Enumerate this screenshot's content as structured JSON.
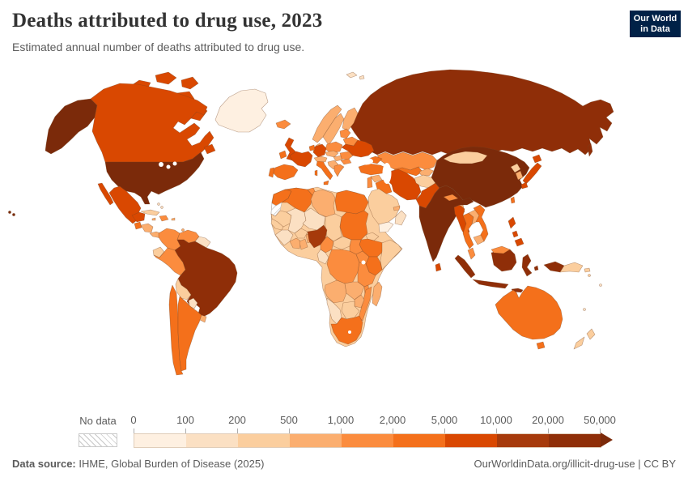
{
  "header": {
    "title": "Deaths attributed to drug use, 2023",
    "subtitle": "Estimated annual number of deaths attributed to drug use.",
    "logo": {
      "line1": "Our World",
      "line2": "in Data",
      "bg_color": "#002147",
      "accent_color": "#d93a21"
    }
  },
  "chart_data": {
    "type": "choropleth_map",
    "title": "Deaths attributed to drug use, 2023",
    "subtitle": "Estimated annual number of deaths attributed to drug use.",
    "year": "2023",
    "legend": {
      "no_data_label": "No data",
      "tick_labels": [
        "0",
        "100",
        "200",
        "500",
        "1,000",
        "2,000",
        "5,000",
        "10,000",
        "20,000",
        "50,000"
      ],
      "bin_ranges": [
        "0-100",
        "100-200",
        "200-500",
        "500-1,000",
        "1,000-2,000",
        "2,000-5,000",
        "5,000-10,000",
        "10,000-20,000",
        "20,000-50,000",
        ">50,000"
      ],
      "bin_colors": [
        "#fef0e1",
        "#fbe0c3",
        "#fbce9e",
        "#fbae6f",
        "#fb8c3e",
        "#f4701b",
        "#d94801",
        "#a63a0b",
        "#8f2e08",
        "#7b2a0a"
      ],
      "no_data_pattern": "diagonal-hatch",
      "open_ended_upper": true
    },
    "countries": [
      {
        "n": "United States",
        "b": 9
      },
      {
        "n": "Canada",
        "b": 6
      },
      {
        "n": "Greenland",
        "b": 0
      },
      {
        "n": "Mexico",
        "b": 6
      },
      {
        "n": "Guatemala",
        "b": 5
      },
      {
        "n": "Honduras",
        "b": 3
      },
      {
        "n": "Panama",
        "b": 3
      },
      {
        "n": "Cuba",
        "b": 2
      },
      {
        "n": "Dominican Republic",
        "b": 4
      },
      {
        "n": "Jamaica",
        "b": 3
      },
      {
        "n": "Puerto Rico",
        "b": 3
      },
      {
        "n": "Bahamas",
        "b": 1
      },
      {
        "n": "Trinidad and Tobago",
        "b": 3
      },
      {
        "n": "Colombia",
        "b": 4
      },
      {
        "n": "Venezuela",
        "b": 4
      },
      {
        "n": "Guyana",
        "b": 1
      },
      {
        "n": "Ecuador",
        "b": 2
      },
      {
        "n": "Peru",
        "b": 4
      },
      {
        "n": "Brazil",
        "b": 8
      },
      {
        "n": "Bolivia",
        "b": 2
      },
      {
        "n": "Paraguay",
        "b": 1
      },
      {
        "n": "Chile",
        "b": 5
      },
      {
        "n": "Argentina",
        "b": 5
      },
      {
        "n": "Uruguay",
        "b": 3
      },
      {
        "n": "Iceland",
        "b": 4
      },
      {
        "n": "United Kingdom",
        "b": 6
      },
      {
        "n": "Ireland",
        "b": 5
      },
      {
        "n": "Norway",
        "b": 3
      },
      {
        "n": "Sweden",
        "b": 3
      },
      {
        "n": "Finland",
        "b": 3
      },
      {
        "n": "Denmark",
        "b": 3
      },
      {
        "n": "Lithuania",
        "b": 4
      },
      {
        "n": "Belarus",
        "b": 4
      },
      {
        "n": "Poland",
        "b": 4
      },
      {
        "n": "Germany",
        "b": 6
      },
      {
        "n": "Netherlands",
        "b": 5
      },
      {
        "n": "France",
        "b": 6
      },
      {
        "n": "Spain",
        "b": 5
      },
      {
        "n": "Portugal",
        "b": 5
      },
      {
        "n": "Italy",
        "b": 5
      },
      {
        "n": "Austria",
        "b": 3
      },
      {
        "n": "Czechia",
        "b": 3
      },
      {
        "n": "Hungary",
        "b": 3
      },
      {
        "n": "Serbia",
        "b": 3
      },
      {
        "n": "Romania",
        "b": 4
      },
      {
        "n": "Bulgaria",
        "b": 4
      },
      {
        "n": "Greece",
        "b": 4
      },
      {
        "n": "Ukraine",
        "b": 6
      },
      {
        "n": "Russia",
        "b": 8
      },
      {
        "n": "Svalbard",
        "b": 1
      },
      {
        "n": "Kazakhstan",
        "b": 4
      },
      {
        "n": "Uzbekistan",
        "b": 5
      },
      {
        "n": "Turkmenistan",
        "b": 4
      },
      {
        "n": "Kyrgyzstan",
        "b": 3
      },
      {
        "n": "Azerbaijan",
        "b": 5
      },
      {
        "n": "Turkey",
        "b": 5
      },
      {
        "n": "Syria",
        "b": 3
      },
      {
        "n": "Jordan",
        "b": 4
      },
      {
        "n": "Iraq",
        "b": 5
      },
      {
        "n": "Iran",
        "b": 6
      },
      {
        "n": "Saudi Arabia",
        "b": 2
      },
      {
        "n": "Yemen",
        "b": 0
      },
      {
        "n": "Oman",
        "b": 1
      },
      {
        "n": "United Arab Emirates",
        "b": 3
      },
      {
        "n": "Afghanistan",
        "b": 2
      },
      {
        "n": "Pakistan",
        "b": 6
      },
      {
        "n": "India",
        "b": 9
      },
      {
        "n": "Nepal",
        "b": 4
      },
      {
        "n": "Bangladesh",
        "b": 3
      },
      {
        "n": "Sri Lanka",
        "b": 6
      },
      {
        "n": "China",
        "b": 9
      },
      {
        "n": "Mongolia",
        "b": 2
      },
      {
        "n": "North Korea",
        "b": 2
      },
      {
        "n": "South Korea",
        "b": 3
      },
      {
        "n": "Japan",
        "b": 6
      },
      {
        "n": "Taiwan",
        "b": 5
      },
      {
        "n": "Myanmar",
        "b": 6
      },
      {
        "n": "Thailand",
        "b": 5
      },
      {
        "n": "Laos",
        "b": 3
      },
      {
        "n": "Vietnam",
        "b": 5
      },
      {
        "n": "Cambodia",
        "b": 3
      },
      {
        "n": "Malaysia",
        "b": 4
      },
      {
        "n": "Indonesia",
        "b": 8
      },
      {
        "n": "Timor",
        "b": 1
      },
      {
        "n": "Philippines",
        "b": 6
      },
      {
        "n": "Papua New Guinea",
        "b": 2
      },
      {
        "n": "Solomon Islands",
        "b": 2
      },
      {
        "n": "Fiji",
        "b": 1
      },
      {
        "n": "New Caledonia",
        "b": 1
      },
      {
        "n": "Australia",
        "b": 5
      },
      {
        "n": "New Zealand",
        "b": 2
      },
      {
        "n": "Morocco",
        "b": 5
      },
      {
        "n": "Western Sahara",
        "b": -1
      },
      {
        "n": "Algeria",
        "b": 5
      },
      {
        "n": "Tunisia",
        "b": 4
      },
      {
        "n": "Libya",
        "b": 3
      },
      {
        "n": "Egypt",
        "b": 5
      },
      {
        "n": "Mauritania",
        "b": 2
      },
      {
        "n": "Mali",
        "b": 1
      },
      {
        "n": "Niger",
        "b": 1
      },
      {
        "n": "Chad",
        "b": 2
      },
      {
        "n": "Sudan",
        "b": 5
      },
      {
        "n": "Eritrea",
        "b": 2
      },
      {
        "n": "Ethiopia",
        "b": 5
      },
      {
        "n": "Somalia",
        "b": 2
      },
      {
        "n": "Senegal",
        "b": 2
      },
      {
        "n": "Guinea",
        "b": 1
      },
      {
        "n": "Ivory Coast",
        "b": 3
      },
      {
        "n": "Ghana",
        "b": 3
      },
      {
        "n": "Benin",
        "b": 3
      },
      {
        "n": "Burkina Faso",
        "b": 2
      },
      {
        "n": "Nigeria",
        "b": 7
      },
      {
        "n": "Cameroon",
        "b": 4
      },
      {
        "n": "Central African Republic",
        "b": 2
      },
      {
        "n": "South Sudan",
        "b": 4
      },
      {
        "n": "Gabon",
        "b": 1
      },
      {
        "n": "DR Congo",
        "b": 4
      },
      {
        "n": "Uganda",
        "b": 4
      },
      {
        "n": "Kenya",
        "b": 5
      },
      {
        "n": "Tanzania",
        "b": 4
      },
      {
        "n": "Angola",
        "b": 3
      },
      {
        "n": "Zambia",
        "b": 3
      },
      {
        "n": "Malawi",
        "b": 4
      },
      {
        "n": "Mozambique",
        "b": 4
      },
      {
        "n": "Zimbabwe",
        "b": 3
      },
      {
        "n": "Botswana",
        "b": 2
      },
      {
        "n": "Namibia",
        "b": 1
      },
      {
        "n": "South Africa",
        "b": 5
      },
      {
        "n": "Madagascar",
        "b": 3
      }
    ]
  },
  "footer": {
    "source_label": "Data source:",
    "source_text": " IHME, Global Burden of Disease (2025)",
    "link_text": "OurWorldinData.org/illicit-drug-use | CC BY"
  }
}
